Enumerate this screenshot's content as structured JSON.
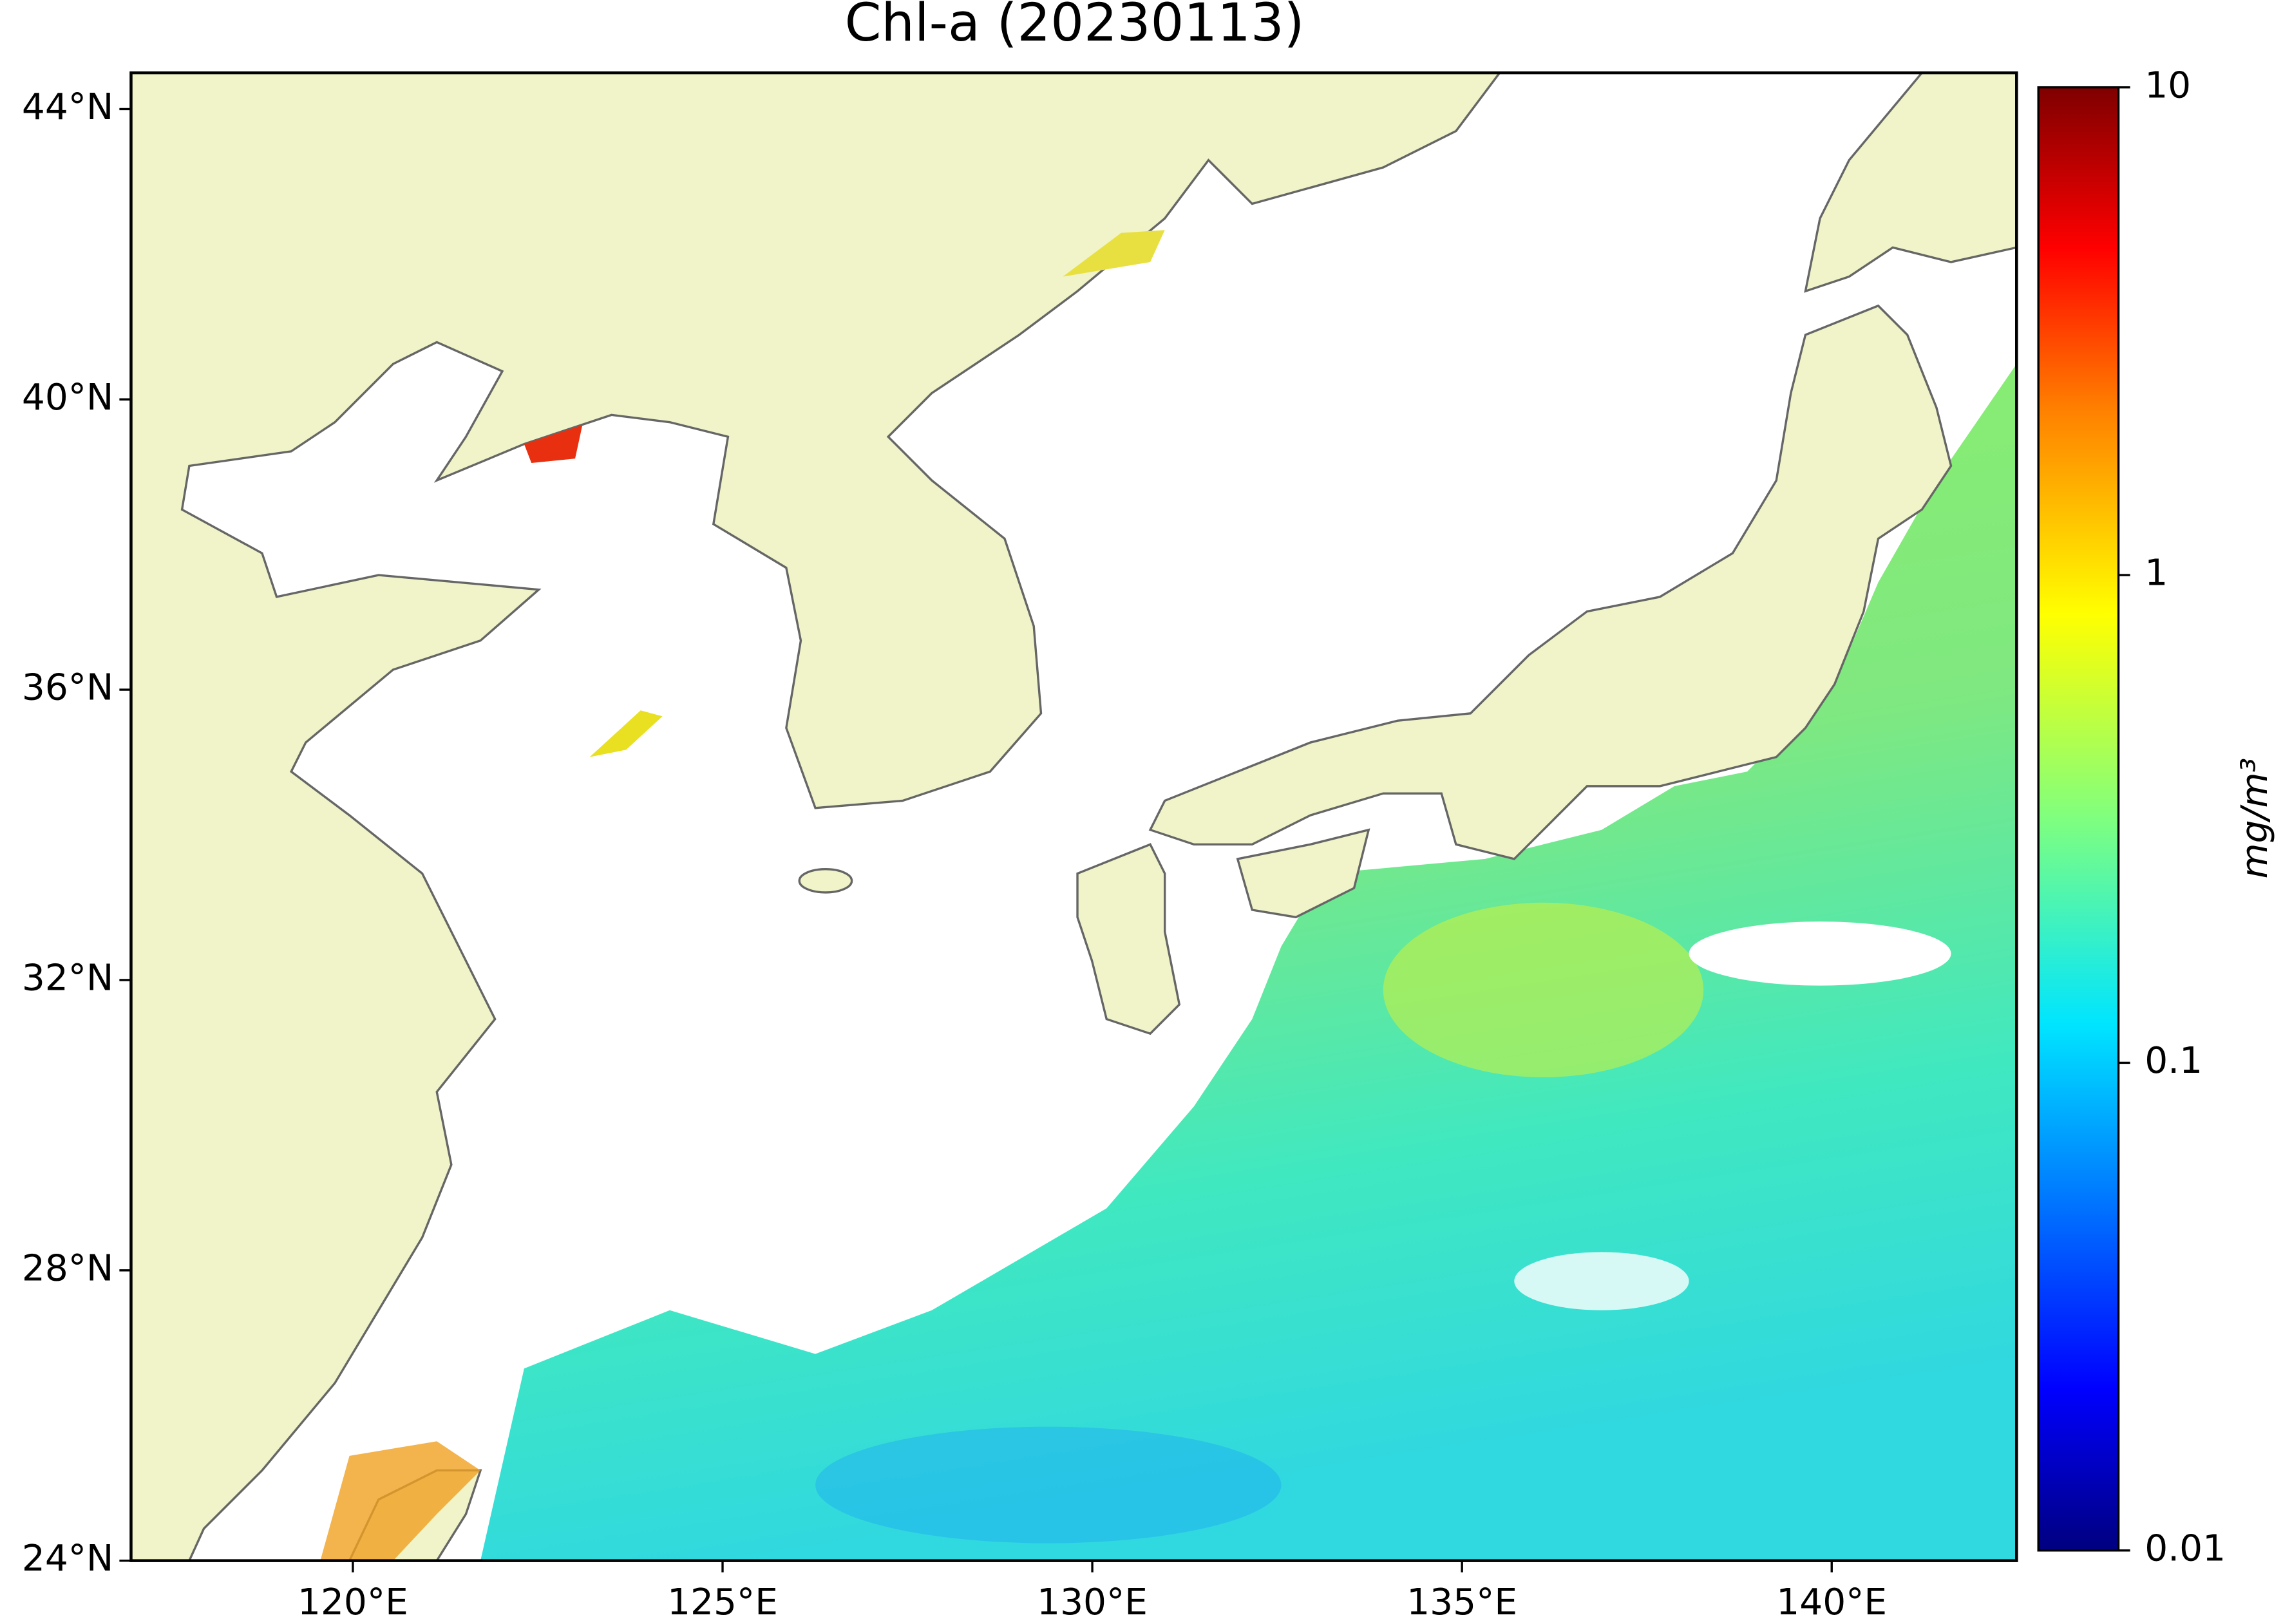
{
  "chart_data": {
    "type": "map",
    "title": "Chl-a (20230113)",
    "xlim": [
      117,
      142.5
    ],
    "ylim": [
      24,
      44.5
    ],
    "xticks": [
      {
        "value": 120,
        "label": "120°E"
      },
      {
        "value": 125,
        "label": "125°E"
      },
      {
        "value": 130,
        "label": "130°E"
      },
      {
        "value": 135,
        "label": "135°E"
      },
      {
        "value": 140,
        "label": "140°E"
      }
    ],
    "yticks": [
      {
        "value": 24,
        "label": "24°N"
      },
      {
        "value": 28,
        "label": "28°N"
      },
      {
        "value": 32,
        "label": "32°N"
      },
      {
        "value": 36,
        "label": "36°N"
      },
      {
        "value": 40,
        "label": "40°N"
      },
      {
        "value": 44,
        "label": "44°N"
      }
    ],
    "colorbar": {
      "label": "mg/m³",
      "scale": "log",
      "clim": [
        0.01,
        10
      ],
      "ticks": [
        0.01,
        0.1,
        1,
        10
      ]
    }
  }
}
